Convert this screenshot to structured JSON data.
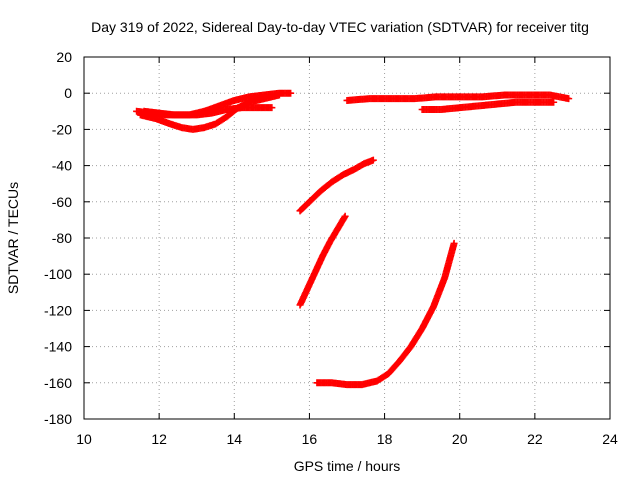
{
  "chart_data": {
    "type": "scatter",
    "title": "Day 319 of 2022, Sidereal Day-to-day VTEC variation (SDTVAR) for receiver titg",
    "xlabel": "GPS time / hours",
    "ylabel": "SDTVAR / TECUs",
    "xlim": [
      10,
      24
    ],
    "ylim": [
      -180,
      20
    ],
    "xticks": [
      10,
      12,
      14,
      16,
      18,
      20,
      22,
      24
    ],
    "yticks": [
      -180,
      -160,
      -140,
      -120,
      -100,
      -80,
      -60,
      -40,
      -20,
      0,
      20
    ],
    "xtick_labels": [
      "10",
      "12",
      "14",
      "16",
      "18",
      "20",
      "22",
      "24"
    ],
    "ytick_labels": [
      "-180",
      "-160",
      "-140",
      "-120",
      "-100",
      "-80",
      "-60",
      "-40",
      "-20",
      "0",
      "20"
    ],
    "grid": true,
    "marker": "plus",
    "color": "#ff0000",
    "series": [
      {
        "x": [
          11.4,
          11.8,
          12.2,
          12.6,
          13.0,
          13.4,
          13.8,
          14.2,
          14.6,
          15.0
        ],
        "y": [
          -10,
          -11,
          -12,
          -12,
          -12,
          -11,
          -9,
          -8,
          -8,
          -8
        ]
      },
      {
        "x": [
          11.5,
          11.9,
          12.3,
          12.6,
          12.9,
          13.2,
          13.5,
          13.8,
          14.1,
          14.4,
          14.8,
          15.2
        ],
        "y": [
          -12,
          -14,
          -17,
          -19,
          -20,
          -19,
          -17,
          -13,
          -8,
          -5,
          -3,
          -1
        ]
      },
      {
        "x": [
          11.6,
          12.0,
          12.4,
          12.8,
          13.2,
          13.6,
          14.0,
          14.4,
          14.8,
          15.2,
          15.5
        ],
        "y": [
          -10,
          -11,
          -12,
          -12,
          -10,
          -7,
          -4,
          -2,
          -1,
          0,
          0
        ]
      },
      {
        "x": [
          17.0,
          17.6,
          18.2,
          18.8,
          19.4,
          20.0,
          20.6,
          21.2,
          21.8,
          22.4,
          22.9
        ],
        "y": [
          -4,
          -3,
          -3,
          -3,
          -2,
          -2,
          -2,
          -1,
          -1,
          -1,
          -3
        ]
      },
      {
        "x": [
          19.0,
          19.5,
          20.0,
          20.5,
          21.0,
          21.5,
          22.0,
          22.5
        ],
        "y": [
          -9,
          -9,
          -8,
          -7,
          -6,
          -5,
          -5,
          -5
        ]
      },
      {
        "x": [
          15.75,
          16.0,
          16.3,
          16.6,
          16.9,
          17.2,
          17.45,
          17.7
        ],
        "y": [
          -65,
          -60,
          -54,
          -49,
          -45,
          -42,
          -39,
          -37
        ]
      },
      {
        "x": [
          15.75,
          15.95,
          16.15,
          16.35,
          16.55,
          16.75,
          16.95
        ],
        "y": [
          -117,
          -108,
          -99,
          -90,
          -82,
          -75,
          -68
        ]
      },
      {
        "x": [
          16.2,
          16.6,
          17.0,
          17.4,
          17.8,
          18.1,
          18.4,
          18.7,
          19.0,
          19.3,
          19.6,
          19.85
        ],
        "y": [
          -160,
          -160,
          -161,
          -161,
          -159,
          -155,
          -148,
          -140,
          -130,
          -118,
          -102,
          -83
        ]
      }
    ]
  }
}
